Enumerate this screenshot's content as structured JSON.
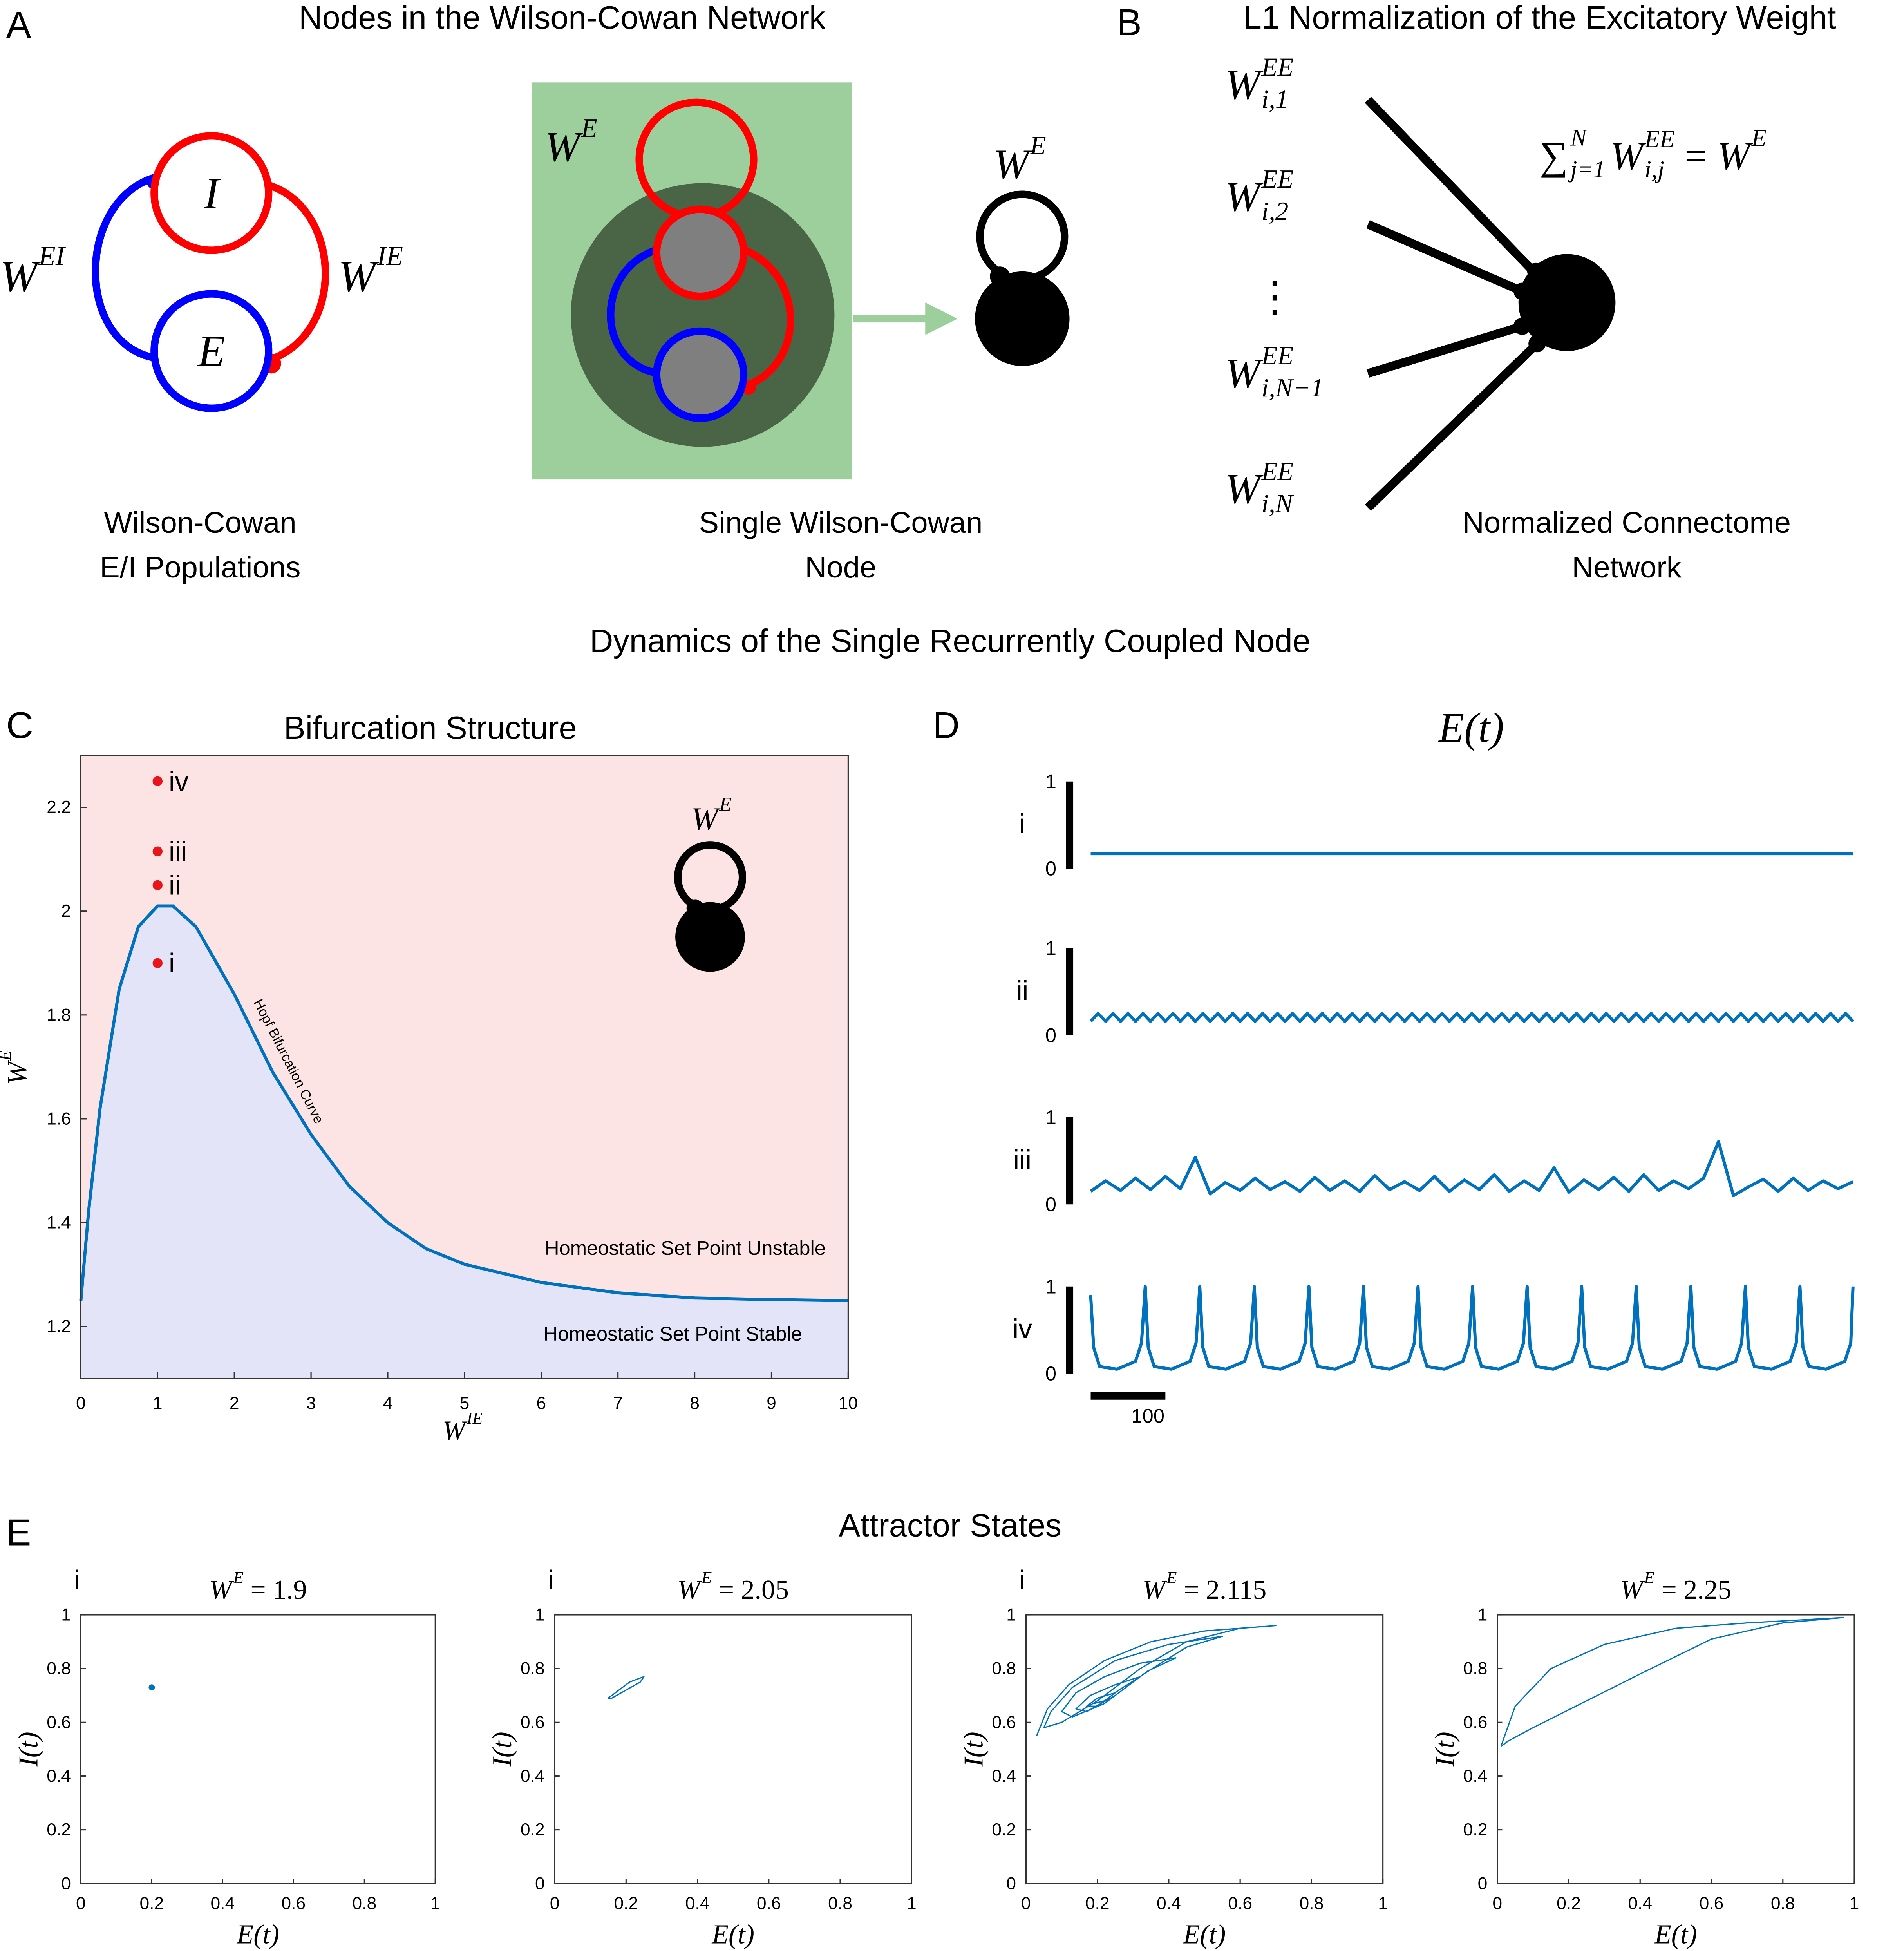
{
  "panel_a": {
    "label": "A",
    "title": "Nodes in the Wilson-Cowan Network",
    "w_ei": {
      "base": "W",
      "sup": "EI"
    },
    "w_ie": {
      "base": "W",
      "sup": "IE"
    },
    "node_i": "I",
    "node_e": "E",
    "w_e_box": {
      "base": "W",
      "sup": "E"
    },
    "w_e_node": {
      "base": "W",
      "sup": "E"
    },
    "caption_left": [
      "Wilson-Cowan",
      "E/I Populations"
    ],
    "caption_mid": [
      "Single Wilson-Cowan",
      "Node"
    ]
  },
  "panel_b": {
    "label": "B",
    "title": "L1 Normalization of the Excitatory Weight",
    "weights": [
      {
        "base": "W",
        "sup": "EE",
        "sub": "i,1"
      },
      {
        "base": "W",
        "sup": "EE",
        "sub": "i,2"
      },
      "⋮",
      {
        "base": "W",
        "sup": "EE",
        "sub": "i,N−1"
      },
      {
        "base": "W",
        "sup": "EE",
        "sub": "i,N"
      }
    ],
    "sum": {
      "sigma": "∑",
      "upper": "N",
      "lower": "j=1",
      "term": {
        "base": "W",
        "sup": "EE",
        "sub": "i,j"
      },
      "eq": " = ",
      "rhs": {
        "base": "W",
        "sup": "E"
      }
    },
    "caption": [
      "Normalized Connectome",
      "Network"
    ]
  },
  "section_title": "Dynamics of the Single Recurrently Coupled Node",
  "panel_e": {
    "label": "E",
    "title": "Attractor States"
  },
  "chart_data": [
    {
      "type": "line",
      "panel_label": "C",
      "title": "Bifurcation Structure",
      "xlabel": {
        "base": "W",
        "sup": "IE"
      },
      "ylabel": {
        "base": "W",
        "sup": "E"
      },
      "xlim": [
        0,
        10
      ],
      "ylim": [
        1.1,
        2.3
      ],
      "xticks": [
        0,
        1,
        2,
        3,
        4,
        5,
        6,
        7,
        8,
        9,
        10
      ],
      "yticks": [
        1.2,
        1.4,
        1.6,
        1.8,
        2,
        2.2
      ],
      "x": [
        0,
        0.1,
        0.25,
        0.5,
        0.75,
        1,
        1.2,
        1.5,
        2,
        2.5,
        3,
        3.5,
        4,
        4.5,
        5,
        6,
        7,
        8,
        9,
        10
      ],
      "values": [
        1.25,
        1.42,
        1.62,
        1.85,
        1.97,
        2.01,
        2.01,
        1.97,
        1.84,
        1.69,
        1.57,
        1.47,
        1.4,
        1.35,
        1.32,
        1.285,
        1.265,
        1.255,
        1.252,
        1.25
      ],
      "color": "#0072bd",
      "unstable_color": "#fde4e4",
      "stable_color": "#e4e4f8",
      "points": {
        "x": [
          1,
          1,
          1,
          1
        ],
        "values": [
          1.9,
          2.05,
          2.115,
          2.25
        ],
        "labels": [
          "i",
          "ii",
          "iii",
          "iv"
        ],
        "color": "#e8151b"
      },
      "curve_label": "Hopf Bifurcation Curve",
      "region_labels": [
        "Homeostatic Set Point Unstable",
        "Homeostatic Set Point Stable"
      ],
      "inset_label": {
        "base": "W",
        "sup": "E"
      }
    },
    {
      "type": "traces",
      "panel_label": "D",
      "title": "E(t)",
      "xlim": [
        0,
        1020
      ],
      "ylim": [
        0,
        1
      ],
      "yticks": [
        0,
        1
      ],
      "scalebar": 100,
      "color": "#0072bd",
      "rows": [
        {
          "label": "i",
          "x": [
            0,
            1020
          ],
          "values": [
            0.17,
            0.17
          ]
        },
        {
          "label": "ii",
          "x": [
            0,
            10,
            20,
            30,
            40,
            50,
            60,
            70,
            80,
            90,
            100,
            110,
            120,
            130,
            140,
            150,
            160,
            170,
            180,
            190,
            200,
            210,
            220,
            230,
            240,
            250,
            260,
            270,
            280,
            290,
            300,
            310,
            320,
            330,
            340,
            350,
            360,
            370,
            380,
            390,
            400,
            410,
            420,
            430,
            440,
            450,
            460,
            470,
            480,
            490,
            500,
            510,
            520,
            530,
            540,
            550,
            560,
            570,
            580,
            590,
            600,
            610,
            620,
            630,
            640,
            650,
            660,
            670,
            680,
            690,
            700,
            710,
            720,
            730,
            740,
            750,
            760,
            770,
            780,
            790,
            800,
            810,
            820,
            830,
            840,
            850,
            860,
            870,
            880,
            890,
            900,
            910,
            920,
            930,
            940,
            950,
            960,
            970,
            980,
            990,
            1000,
            1010,
            1020
          ],
          "values": [
            0.16,
            0.25,
            0.16,
            0.25,
            0.16,
            0.25,
            0.16,
            0.25,
            0.16,
            0.25,
            0.16,
            0.25,
            0.16,
            0.25,
            0.16,
            0.25,
            0.16,
            0.25,
            0.16,
            0.25,
            0.16,
            0.25,
            0.16,
            0.25,
            0.16,
            0.25,
            0.16,
            0.25,
            0.16,
            0.25,
            0.16,
            0.25,
            0.16,
            0.25,
            0.16,
            0.25,
            0.16,
            0.25,
            0.16,
            0.25,
            0.16,
            0.25,
            0.16,
            0.25,
            0.16,
            0.25,
            0.16,
            0.25,
            0.16,
            0.25,
            0.16,
            0.25,
            0.16,
            0.25,
            0.16,
            0.25,
            0.16,
            0.25,
            0.16,
            0.25,
            0.16,
            0.25,
            0.16,
            0.25,
            0.16,
            0.25,
            0.16,
            0.25,
            0.16,
            0.25,
            0.16,
            0.25,
            0.16,
            0.25,
            0.16,
            0.25,
            0.16,
            0.25,
            0.16,
            0.25,
            0.16,
            0.25,
            0.16,
            0.25,
            0.16,
            0.25,
            0.16,
            0.25,
            0.16,
            0.25,
            0.16,
            0.25,
            0.16,
            0.25,
            0.16,
            0.25,
            0.16,
            0.25,
            0.16,
            0.25,
            0.16,
            0.25,
            0.16
          ]
        },
        {
          "label": "iii",
          "x": [
            0,
            20,
            40,
            60,
            80,
            100,
            120,
            140,
            160,
            180,
            200,
            220,
            240,
            260,
            280,
            300,
            320,
            340,
            360,
            380,
            400,
            420,
            440,
            460,
            480,
            500,
            520,
            540,
            560,
            580,
            600,
            620,
            640,
            660,
            680,
            700,
            720,
            740,
            760,
            780,
            800,
            820,
            840,
            860,
            880,
            900,
            920,
            940,
            960,
            980,
            1000,
            1020
          ],
          "values": [
            0.15,
            0.27,
            0.16,
            0.3,
            0.17,
            0.32,
            0.18,
            0.54,
            0.12,
            0.25,
            0.16,
            0.3,
            0.17,
            0.26,
            0.15,
            0.31,
            0.16,
            0.27,
            0.15,
            0.33,
            0.17,
            0.26,
            0.16,
            0.32,
            0.15,
            0.28,
            0.17,
            0.34,
            0.15,
            0.27,
            0.16,
            0.42,
            0.14,
            0.28,
            0.17,
            0.31,
            0.15,
            0.34,
            0.16,
            0.27,
            0.18,
            0.3,
            0.72,
            0.1,
            0.2,
            0.29,
            0.15,
            0.3,
            0.16,
            0.27,
            0.18,
            0.26
          ]
        },
        {
          "label": "iv",
          "x": [
            0,
            4,
            12,
            35,
            60,
            68,
            73,
            77,
            85,
            108,
            133,
            141,
            146,
            150,
            158,
            181,
            206,
            214,
            219,
            223,
            231,
            254,
            279,
            287,
            292,
            296,
            304,
            327,
            352,
            360,
            365,
            369,
            377,
            400,
            425,
            433,
            438,
            442,
            450,
            473,
            498,
            506,
            511,
            515,
            523,
            546,
            571,
            579,
            584,
            588,
            596,
            619,
            644,
            652,
            657,
            661,
            669,
            692,
            717,
            725,
            730,
            734,
            742,
            765,
            790,
            798,
            803,
            807,
            815,
            838,
            863,
            871,
            876,
            880,
            888,
            911,
            936,
            944,
            949,
            953,
            961,
            984,
            1009,
            1017,
            1020
          ],
          "values": [
            0.9,
            0.3,
            0.08,
            0.05,
            0.14,
            0.35,
            1,
            0.3,
            0.08,
            0.05,
            0.14,
            0.35,
            1,
            0.3,
            0.08,
            0.05,
            0.14,
            0.35,
            1,
            0.3,
            0.08,
            0.05,
            0.14,
            0.35,
            1,
            0.3,
            0.08,
            0.05,
            0.14,
            0.35,
            1,
            0.3,
            0.08,
            0.05,
            0.14,
            0.35,
            1,
            0.3,
            0.08,
            0.05,
            0.14,
            0.35,
            1,
            0.3,
            0.08,
            0.05,
            0.14,
            0.35,
            1,
            0.3,
            0.08,
            0.05,
            0.14,
            0.35,
            1,
            0.3,
            0.08,
            0.05,
            0.14,
            0.35,
            1,
            0.3,
            0.08,
            0.05,
            0.14,
            0.35,
            1,
            0.3,
            0.08,
            0.05,
            0.14,
            0.35,
            1,
            0.3,
            0.08,
            0.05,
            0.14,
            0.35,
            1,
            0.3,
            0.08,
            0.05,
            0.14,
            0.35,
            1
          ]
        }
      ]
    },
    {
      "type": "scatter",
      "tag": "i",
      "title": {
        "base": "W",
        "sup": "E",
        "rest": " = 1.9"
      },
      "xlabel": "E(t)",
      "ylabel": "I(t)",
      "xlim": [
        0,
        1
      ],
      "ylim": [
        0,
        1
      ],
      "xticks": [
        0,
        0.2,
        0.4,
        0.6,
        0.8,
        1
      ],
      "yticks": [
        0,
        0.2,
        0.4,
        0.6,
        0.8,
        1
      ],
      "x": [
        0.2
      ],
      "values": [
        0.73
      ],
      "color": "#0072bd"
    },
    {
      "type": "line",
      "tag": "i",
      "title": {
        "base": "W",
        "sup": "E",
        "rest": " = 2.05"
      },
      "xlabel": "E(t)",
      "ylabel": "I(t)",
      "xlim": [
        0,
        1
      ],
      "ylim": [
        0,
        1
      ],
      "xticks": [
        0,
        0.2,
        0.4,
        0.6,
        0.8,
        1
      ],
      "yticks": [
        0,
        0.2,
        0.4,
        0.6,
        0.8,
        1
      ],
      "x": [
        0.15,
        0.17,
        0.21,
        0.25,
        0.24,
        0.2,
        0.16,
        0.15
      ],
      "values": [
        0.69,
        0.71,
        0.75,
        0.77,
        0.75,
        0.72,
        0.69,
        0.69
      ],
      "color": "#0072bd"
    },
    {
      "type": "line",
      "tag": "i",
      "title": {
        "base": "W",
        "sup": "E",
        "rest": " = 2.115"
      },
      "xlabel": "E(t)",
      "ylabel": "I(t)",
      "xlim": [
        0,
        1
      ],
      "ylim": [
        0,
        1
      ],
      "xticks": [
        0,
        0.2,
        0.4,
        0.6,
        0.8,
        1
      ],
      "yticks": [
        0,
        0.2,
        0.4,
        0.6,
        0.8,
        1
      ],
      "x": [
        0.03,
        0.06,
        0.12,
        0.22,
        0.35,
        0.5,
        0.7,
        0.6,
        0.45,
        0.32,
        0.2,
        0.1,
        0.05,
        0.07,
        0.13,
        0.25,
        0.4,
        0.55,
        0.45,
        0.33,
        0.22,
        0.13,
        0.1,
        0.14,
        0.22,
        0.32,
        0.42,
        0.34,
        0.25,
        0.17,
        0.14,
        0.18,
        0.25,
        0.32,
        0.26,
        0.2,
        0.17,
        0.2,
        0.25,
        0.22,
        0.19
      ],
      "values": [
        0.55,
        0.65,
        0.74,
        0.83,
        0.9,
        0.94,
        0.96,
        0.95,
        0.9,
        0.8,
        0.68,
        0.6,
        0.58,
        0.64,
        0.73,
        0.83,
        0.89,
        0.92,
        0.88,
        0.78,
        0.67,
        0.62,
        0.64,
        0.71,
        0.77,
        0.82,
        0.84,
        0.79,
        0.7,
        0.64,
        0.65,
        0.7,
        0.74,
        0.77,
        0.72,
        0.66,
        0.66,
        0.69,
        0.71,
        0.68,
        0.67
      ],
      "color": "#0072bd"
    },
    {
      "type": "line",
      "title": {
        "base": "W",
        "sup": "E",
        "rest": " = 2.25"
      },
      "xlabel": "E(t)",
      "ylabel": "I(t)",
      "xlim": [
        0,
        1
      ],
      "ylim": [
        0,
        1
      ],
      "xticks": [
        0,
        0.2,
        0.4,
        0.6,
        0.8,
        1
      ],
      "yticks": [
        0,
        0.2,
        0.4,
        0.6,
        0.8,
        1
      ],
      "x": [
        0.01,
        0.05,
        0.15,
        0.3,
        0.5,
        0.7,
        0.97,
        0.8,
        0.6,
        0.4,
        0.25,
        0.1,
        0.03,
        0.01
      ],
      "values": [
        0.51,
        0.66,
        0.8,
        0.89,
        0.95,
        0.97,
        0.99,
        0.97,
        0.91,
        0.78,
        0.68,
        0.58,
        0.53,
        0.51
      ],
      "color": "#0072bd"
    }
  ]
}
